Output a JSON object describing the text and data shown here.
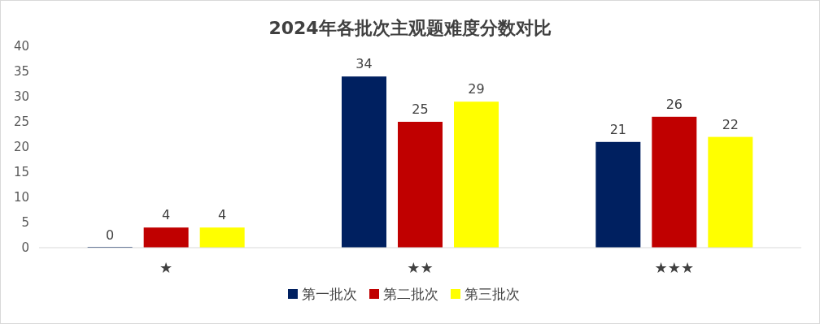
{
  "chart_data": {
    "type": "bar",
    "title": "2024年各批次主观题难度分数对比",
    "categories": [
      "★",
      "★★",
      "★★★"
    ],
    "series": [
      {
        "name": "第一批次",
        "color": "#002060",
        "values": [
          0,
          34,
          21
        ]
      },
      {
        "name": "第二批次",
        "color": "#c00000",
        "values": [
          4,
          25,
          26
        ]
      },
      {
        "name": "第三批次",
        "color": "#ffff00",
        "values": [
          4,
          29,
          22
        ]
      }
    ],
    "ylim": [
      0,
      40
    ],
    "yticks": [
      0,
      5,
      10,
      15,
      20,
      25,
      30,
      35,
      40
    ],
    "grid": false,
    "legend": "bottom",
    "data_labels": true
  }
}
